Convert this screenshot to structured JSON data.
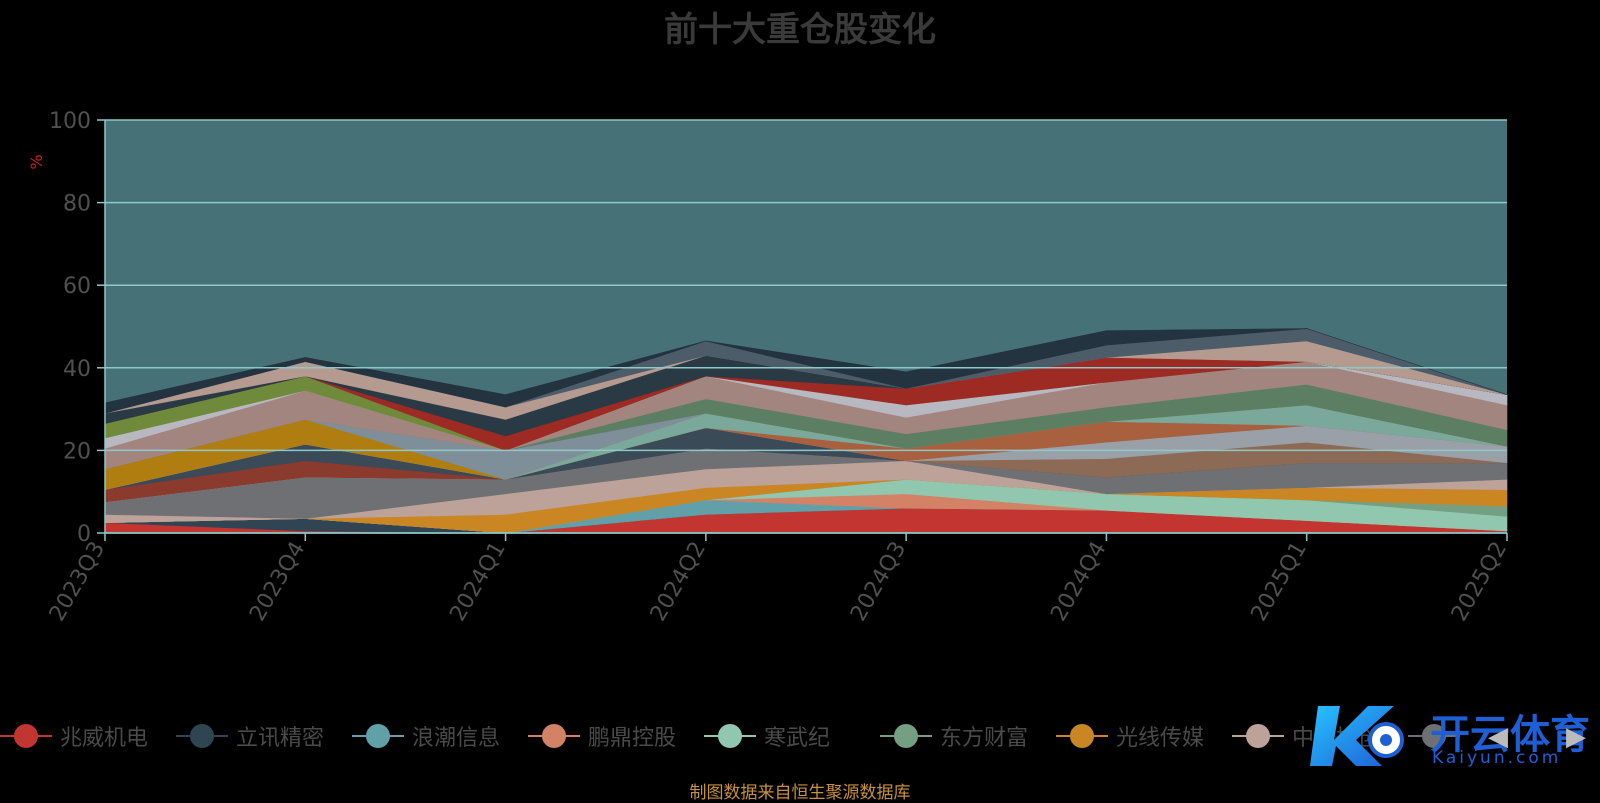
{
  "title": "前十大重仓股变化",
  "source_note": "制图数据来自恒生聚源数据库",
  "watermark": {
    "cn": "开云体育",
    "en": "Kaiyun.com"
  },
  "legend_prev_icon": "◀",
  "legend_next_icon": "▶",
  "colors": {
    "plot_bg": "#467177",
    "grid": "#8fc8c8",
    "axis_text": "#505050",
    "unit_text": "#d02020"
  },
  "chart_data": {
    "type": "area",
    "stacked": true,
    "x": [
      "2023Q3",
      "2023Q4",
      "2024Q1",
      "2024Q2",
      "2024Q3",
      "2024Q4",
      "2025Q1",
      "2025Q2"
    ],
    "ylabel": "%",
    "ylim": [
      0,
      100
    ],
    "yticks": [
      0,
      20,
      40,
      60,
      80,
      100
    ],
    "series": [
      {
        "name": "兆威机电",
        "color": "#c23531",
        "values": [
          2.5,
          0.5,
          0,
          4.5,
          6,
          5.5,
          3,
          0.5
        ],
        "in_legend": true
      },
      {
        "name": "立讯精密",
        "color": "#2f4554",
        "values": [
          0,
          3,
          0,
          0,
          0,
          0,
          0,
          0
        ],
        "in_legend": true
      },
      {
        "name": "浪潮信息",
        "color": "#61a0a8",
        "values": [
          0,
          0,
          0,
          3.5,
          0,
          0,
          0,
          0
        ],
        "in_legend": true
      },
      {
        "name": "鹏鼎控股",
        "color": "#d48265",
        "values": [
          0,
          0,
          0,
          0,
          3.5,
          0,
          0,
          0
        ],
        "in_legend": true
      },
      {
        "name": "寒武纪",
        "color": "#91c7ae",
        "values": [
          0,
          0,
          0,
          0,
          3.5,
          4,
          5,
          3.5
        ],
        "in_legend": true
      },
      {
        "name": "东方财富",
        "color": "#749f83",
        "values": [
          0,
          0,
          0,
          0,
          0,
          0,
          0,
          2.5
        ],
        "in_legend": true
      },
      {
        "name": "光线传媒",
        "color": "#ca8622",
        "values": [
          0,
          0,
          4.5,
          3,
          0,
          0,
          3,
          4
        ],
        "in_legend": true
      },
      {
        "name": "中际旭创",
        "color": "#bda29a",
        "values": [
          2,
          0,
          5,
          4.5,
          4.5,
          0,
          0,
          2.5
        ],
        "in_legend": true
      },
      {
        "name": "",
        "color": "#6e7074",
        "values": [
          3,
          10,
          3.5,
          5,
          0,
          4,
          6,
          4
        ],
        "in_legend": true
      },
      {
        "name": "",
        "color": "#546570",
        "values": [
          0,
          0,
          0,
          0,
          0,
          0,
          0,
          0
        ],
        "in_legend": false
      },
      {
        "name": "",
        "color": "#c4ccd3",
        "values": [
          0,
          0,
          0,
          0,
          0,
          0,
          0,
          0
        ],
        "in_legend": false
      },
      {
        "name": "",
        "color": "#8b3a2e",
        "values": [
          3,
          4,
          0,
          0,
          0,
          0,
          0,
          0
        ],
        "in_legend": false
      },
      {
        "name": "",
        "color": "#3b4a57",
        "values": [
          0,
          4,
          0,
          5,
          0,
          0,
          0,
          0
        ],
        "in_legend": false
      },
      {
        "name": "",
        "color": "#8c6a55",
        "values": [
          0,
          0,
          0,
          0,
          0,
          4.5,
          5,
          0
        ],
        "in_legend": false
      },
      {
        "name": "",
        "color": "#9aa0a8",
        "values": [
          0,
          0,
          0,
          0,
          0,
          4,
          4,
          4
        ],
        "in_legend": false
      },
      {
        "name": "",
        "color": "#a8603f",
        "values": [
          0,
          0,
          0,
          0,
          3,
          5,
          0,
          0
        ],
        "in_legend": false
      },
      {
        "name": "",
        "color": "#7aa89a",
        "values": [
          0,
          0,
          0,
          3.5,
          0,
          0,
          5,
          0
        ],
        "in_legend": false
      },
      {
        "name": "",
        "color": "#b07d10",
        "values": [
          5,
          6,
          0,
          0,
          0,
          0,
          0,
          0
        ],
        "in_legend": false
      },
      {
        "name": "",
        "color": "#7e8f99",
        "values": [
          0,
          0,
          7,
          0,
          0,
          0,
          0,
          0
        ],
        "in_legend": false
      },
      {
        "name": "",
        "color": "#5c7e62",
        "values": [
          0,
          0,
          0,
          3.5,
          3.5,
          3.5,
          5,
          4
        ],
        "in_legend": false
      },
      {
        "name": "",
        "color": "#a38580",
        "values": [
          5,
          7,
          0,
          5.5,
          4,
          6,
          5.5,
          6
        ],
        "in_legend": false
      },
      {
        "name": "",
        "color": "#b8b8c0",
        "values": [
          2.5,
          0,
          0,
          0,
          3,
          0,
          0,
          2.5
        ],
        "in_legend": false
      },
      {
        "name": "",
        "color": "#6f8a3a",
        "values": [
          3.5,
          3.5,
          0,
          0,
          0,
          0,
          0,
          0
        ],
        "in_legend": false
      },
      {
        "name": "",
        "color": "#9e2a24",
        "values": [
          0,
          0,
          3.5,
          0,
          4,
          6,
          0,
          0
        ],
        "in_legend": false
      },
      {
        "name": "",
        "color": "#293a44",
        "values": [
          2.5,
          0,
          4,
          5,
          0,
          0,
          0,
          0
        ],
        "in_legend": false
      },
      {
        "name": "",
        "color": "#b59a90",
        "values": [
          0,
          3.5,
          3,
          0,
          0,
          0,
          5,
          0
        ],
        "in_legend": false
      },
      {
        "name": "",
        "color": "#4c5c68",
        "values": [
          0,
          0,
          0,
          3.5,
          0,
          3,
          3,
          0
        ],
        "in_legend": false
      },
      {
        "name": "",
        "color": "#243340",
        "values": [
          2.5,
          1,
          3,
          0,
          4,
          3.5,
          0,
          0
        ],
        "in_legend": false
      }
    ]
  }
}
